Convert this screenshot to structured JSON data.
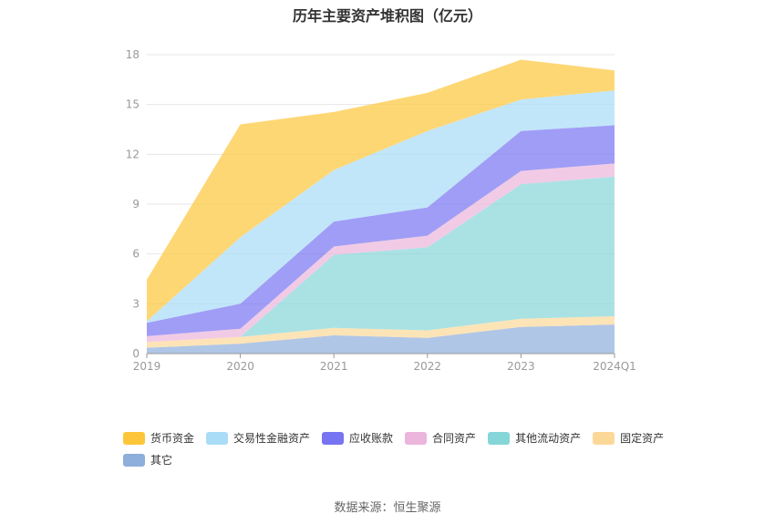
{
  "chart_data": {
    "type": "area",
    "title": "历年主要资产堆积图（亿元）",
    "categories": [
      "2019",
      "2020",
      "2021",
      "2022",
      "2023",
      "2024Q1"
    ],
    "ylim": [
      0,
      18
    ],
    "yticks": [
      0,
      3,
      6,
      9,
      12,
      15,
      18
    ],
    "stacked": true,
    "grid": true,
    "legend_position": "bottom",
    "series": [
      {
        "name": "其它",
        "color": "#8eaedb",
        "values": [
          0.35,
          0.6,
          1.1,
          0.95,
          1.6,
          1.75
        ]
      },
      {
        "name": "固定资产",
        "color": "#fcd898",
        "values": [
          0.35,
          0.4,
          0.45,
          0.45,
          0.5,
          0.5
        ]
      },
      {
        "name": "其他流动资产",
        "color": "#86d5d8",
        "values": [
          0.0,
          0.0,
          4.4,
          5.0,
          8.1,
          8.4
        ]
      },
      {
        "name": "合同资产",
        "color": "#ebb5dc",
        "values": [
          0.35,
          0.5,
          0.5,
          0.7,
          0.8,
          0.8
        ]
      },
      {
        "name": "应收账款",
        "color": "#7774f2",
        "values": [
          0.8,
          1.5,
          1.5,
          1.7,
          2.4,
          2.3
        ]
      },
      {
        "name": "交易性金融资产",
        "color": "#a8dcf7",
        "values": [
          0.1,
          4.0,
          3.1,
          4.6,
          1.9,
          2.1
        ]
      },
      {
        "name": "货币资金",
        "color": "#fdc63a",
        "values": [
          2.5,
          6.8,
          3.5,
          2.3,
          2.4,
          1.2
        ]
      }
    ],
    "legend_order": [
      "货币资金",
      "交易性金融资产",
      "应收账款",
      "合同资产",
      "其他流动资产",
      "固定资产",
      "其它"
    ]
  },
  "source": "数据来源：恒生聚源"
}
